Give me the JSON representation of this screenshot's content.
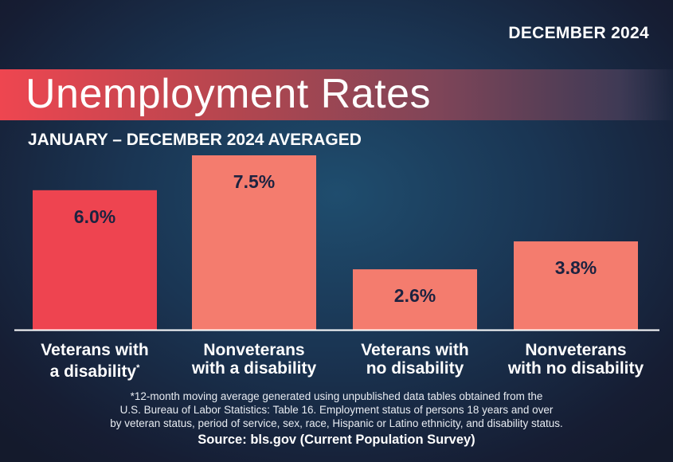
{
  "date_label": "DECEMBER 2024",
  "title": "Unemployment Rates",
  "subtitle": "JANUARY – DECEMBER 2024 AVERAGED",
  "chart_data": {
    "type": "bar",
    "title": "Unemployment Rates",
    "subtitle": "JANUARY – DECEMBER 2024 AVERAGED",
    "categories": [
      {
        "line1": "Veterans with",
        "line2": "a disability",
        "note": "*"
      },
      {
        "line1": "Nonveterans",
        "line2": "with a disability",
        "note": ""
      },
      {
        "line1": "Veterans with",
        "line2": "no disability",
        "note": ""
      },
      {
        "line1": "Nonveterans",
        "line2": "with no disability",
        "note": ""
      }
    ],
    "values": [
      6.0,
      7.5,
      2.6,
      3.8
    ],
    "data_labels": [
      "6.0%",
      "7.5%",
      "2.6%",
      "3.8%"
    ],
    "unit": "%",
    "ylim": [
      0,
      7.5
    ],
    "grid": false,
    "colors": [
      "#ee4450",
      "#f47c6e",
      "#f47c6e",
      "#f47c6e"
    ],
    "label_color": "#1c2340"
  },
  "footnote": {
    "line1": "*12-month moving average generated using unpublished data tables obtained from the",
    "line2": "U.S. Bureau of Labor Statistics: Table 16. Employment status of persons 18 years and over",
    "line3": "by veteran status, period of service, sex, race, Hispanic or Latino ethnicity, and disability status."
  },
  "source": "Source: bls.gov (Current Population Survey)"
}
